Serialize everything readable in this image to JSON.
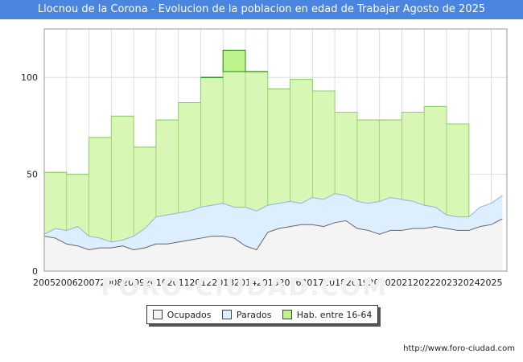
{
  "title": "Llocnou de la Corona - Evolucion de la poblacion en edad de Trabajar Agosto de 2025",
  "source": "http://www.foro-ciudad.com",
  "watermark": "FORO-CIUDAD.COM",
  "colors": {
    "title_bg": "#4a86e0",
    "hab_fill": "#d9f7b4",
    "hab_line": "#8fcf67",
    "hab_peak_fill": "#bdf58c",
    "hab_peak_line": "#2a8a1a",
    "parados_fill": "#ddeeff",
    "parados_line": "#8ab4ec",
    "ocupados_fill": "#f4f4f4",
    "ocupados_line": "#666666",
    "grid": "#dddddd"
  },
  "chart_data": {
    "type": "area",
    "title": "Llocnou de la Corona - Evolucion de la poblacion en edad de Trabajar Agosto de 2025",
    "xlim": [
      2005,
      2025.7
    ],
    "ylim": [
      0,
      125
    ],
    "yticks": [
      0,
      50,
      100
    ],
    "xticks": [
      "2005",
      "2006",
      "2007",
      "2008",
      "2009",
      "2010",
      "2011",
      "2012",
      "2013",
      "2014",
      "2015",
      "2016",
      "2017",
      "2018",
      "2019",
      "2020",
      "2021",
      "2022",
      "2023",
      "2024",
      "2025"
    ],
    "legend_position": "bottom",
    "grid": true,
    "series": [
      {
        "name": "Hab. entre 16-64",
        "step": true,
        "x": [
          2005,
          2006,
          2007,
          2008,
          2009,
          2010,
          2011,
          2012,
          2013,
          2014,
          2015,
          2016,
          2017,
          2018,
          2019,
          2020,
          2021,
          2022,
          2023,
          2024
        ],
        "values": [
          51,
          50,
          69,
          80,
          64,
          78,
          87,
          100,
          114,
          103,
          94,
          99,
          93,
          82,
          78,
          78,
          82,
          85,
          76,
          null
        ]
      },
      {
        "name": "Parados",
        "x": [
          2005,
          2005.5,
          2006,
          2006.5,
          2007,
          2007.5,
          2008,
          2008.5,
          2009,
          2009.5,
          2010,
          2010.5,
          2011,
          2011.5,
          2012,
          2012.5,
          2013,
          2013.5,
          2014,
          2014.5,
          2015,
          2015.5,
          2016,
          2016.5,
          2017,
          2017.5,
          2018,
          2018.5,
          2019,
          2019.5,
          2020,
          2020.5,
          2021,
          2021.5,
          2022,
          2022.5,
          2023,
          2023.5,
          2024,
          2024.5,
          2025,
          2025.5
        ],
        "values": [
          19,
          22,
          21,
          23,
          18,
          17,
          15,
          16,
          18,
          22,
          28,
          29,
          30,
          31,
          33,
          34,
          35,
          33,
          33,
          31,
          34,
          35,
          36,
          35,
          38,
          37,
          40,
          39,
          36,
          35,
          36,
          38,
          37,
          36,
          34,
          33,
          29,
          28,
          28,
          33,
          35,
          39
        ]
      },
      {
        "name": "Ocupados",
        "x": [
          2005,
          2005.5,
          2006,
          2006.5,
          2007,
          2007.5,
          2008,
          2008.5,
          2009,
          2009.5,
          2010,
          2010.5,
          2011,
          2011.5,
          2012,
          2012.5,
          2013,
          2013.5,
          2014,
          2014.5,
          2015,
          2015.5,
          2016,
          2016.5,
          2017,
          2017.5,
          2018,
          2018.5,
          2019,
          2019.5,
          2020,
          2020.5,
          2021,
          2021.5,
          2022,
          2022.5,
          2023,
          2023.5,
          2024,
          2024.5,
          2025,
          2025.5
        ],
        "values": [
          18,
          17,
          14,
          13,
          11,
          12,
          12,
          13,
          11,
          12,
          14,
          14,
          15,
          16,
          17,
          18,
          18,
          17,
          13,
          11,
          20,
          22,
          23,
          24,
          24,
          23,
          25,
          26,
          22,
          21,
          19,
          21,
          21,
          22,
          22,
          23,
          22,
          21,
          21,
          23,
          24,
          27
        ]
      }
    ]
  },
  "legend": {
    "ocupados": "Ocupados",
    "parados": "Parados",
    "hab": "Hab. entre 16-64"
  }
}
